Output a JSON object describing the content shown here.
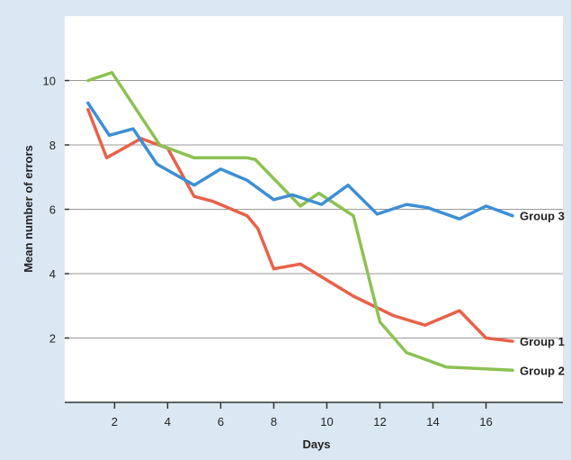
{
  "chart_data": {
    "type": "line",
    "xlabel": "Days",
    "ylabel": "Mean number of errors",
    "xlim": [
      0.8,
      17
    ],
    "ylim": [
      0,
      12
    ],
    "xticks": [
      2,
      4,
      6,
      8,
      10,
      12,
      14,
      16
    ],
    "yticks": [
      2,
      4,
      6,
      8,
      10
    ],
    "grid": "horizontal",
    "colors": {
      "background": "#dbe8f3",
      "plot": "#ffffff",
      "grid": "#9a9a9a",
      "axis": "#333333"
    },
    "series": [
      {
        "name": "Group 1",
        "color": "#e8614a",
        "x": [
          1,
          1.7,
          3,
          4,
          5,
          5.7,
          7,
          7.4,
          8,
          9,
          11,
          12,
          12.5,
          13.7,
          15,
          16,
          17
        ],
        "y": [
          9.1,
          7.6,
          8.2,
          7.9,
          6.4,
          6.25,
          5.8,
          5.4,
          4.15,
          4.3,
          3.3,
          2.9,
          2.7,
          2.4,
          2.85,
          2.0,
          1.9
        ]
      },
      {
        "name": "Group 2",
        "color": "#8dc152",
        "x": [
          1,
          1.9,
          3.7,
          5,
          7,
          7.3,
          9,
          9.7,
          11,
          12,
          13,
          14.5,
          17
        ],
        "y": [
          10.0,
          10.25,
          8.0,
          7.6,
          7.6,
          7.55,
          6.1,
          6.5,
          5.8,
          2.5,
          1.55,
          1.1,
          1.0
        ]
      },
      {
        "name": "Group 3",
        "color": "#3d8fd4",
        "x": [
          1,
          1.8,
          2.7,
          3.6,
          5,
          6,
          7,
          8,
          8.7,
          9.8,
          10.8,
          11.9,
          13,
          13.8,
          15,
          16,
          17
        ],
        "y": [
          9.3,
          8.3,
          8.5,
          7.4,
          6.75,
          7.25,
          6.9,
          6.3,
          6.45,
          6.15,
          6.75,
          5.85,
          6.15,
          6.05,
          5.7,
          6.1,
          5.8
        ]
      }
    ]
  }
}
